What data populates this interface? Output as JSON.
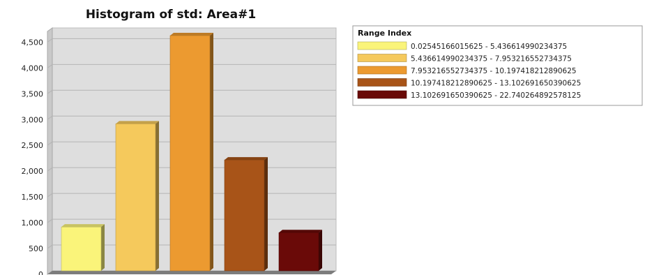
{
  "chart_data": {
    "type": "bar",
    "title": "Histogram of std: Area#1",
    "xlabel": "",
    "ylabel": "",
    "ylim": [
      0,
      4600
    ],
    "yticks": [
      "0",
      "500",
      "1,000",
      "1,500",
      "2,000",
      "2,500",
      "3,000",
      "3,500",
      "4,000",
      "4,500"
    ],
    "ytick_values": [
      0,
      500,
      1000,
      1500,
      2000,
      2500,
      3000,
      3500,
      4000,
      4500
    ],
    "grid": true,
    "legend_title": "Range Index",
    "legend_position": "top-right, outside plot",
    "categories": [
      "0.02545166015625 - 5.436614990234375",
      "5.436614990234375 - 7.953216552734375",
      "7.953216552734375 - 10.197418212890625",
      "10.197418212890625 - 13.102691650390625",
      "13.102691650390625 - 22.740264892578125"
    ],
    "values": [
      850,
      2850,
      4560,
      2150,
      740
    ],
    "colors": [
      "#FAF47A",
      "#F5C95C",
      "#EC9A30",
      "#A85418",
      "#6A0A08"
    ],
    "wall_color": "#DEDEDE",
    "floor_color": "#7C7C7C"
  }
}
